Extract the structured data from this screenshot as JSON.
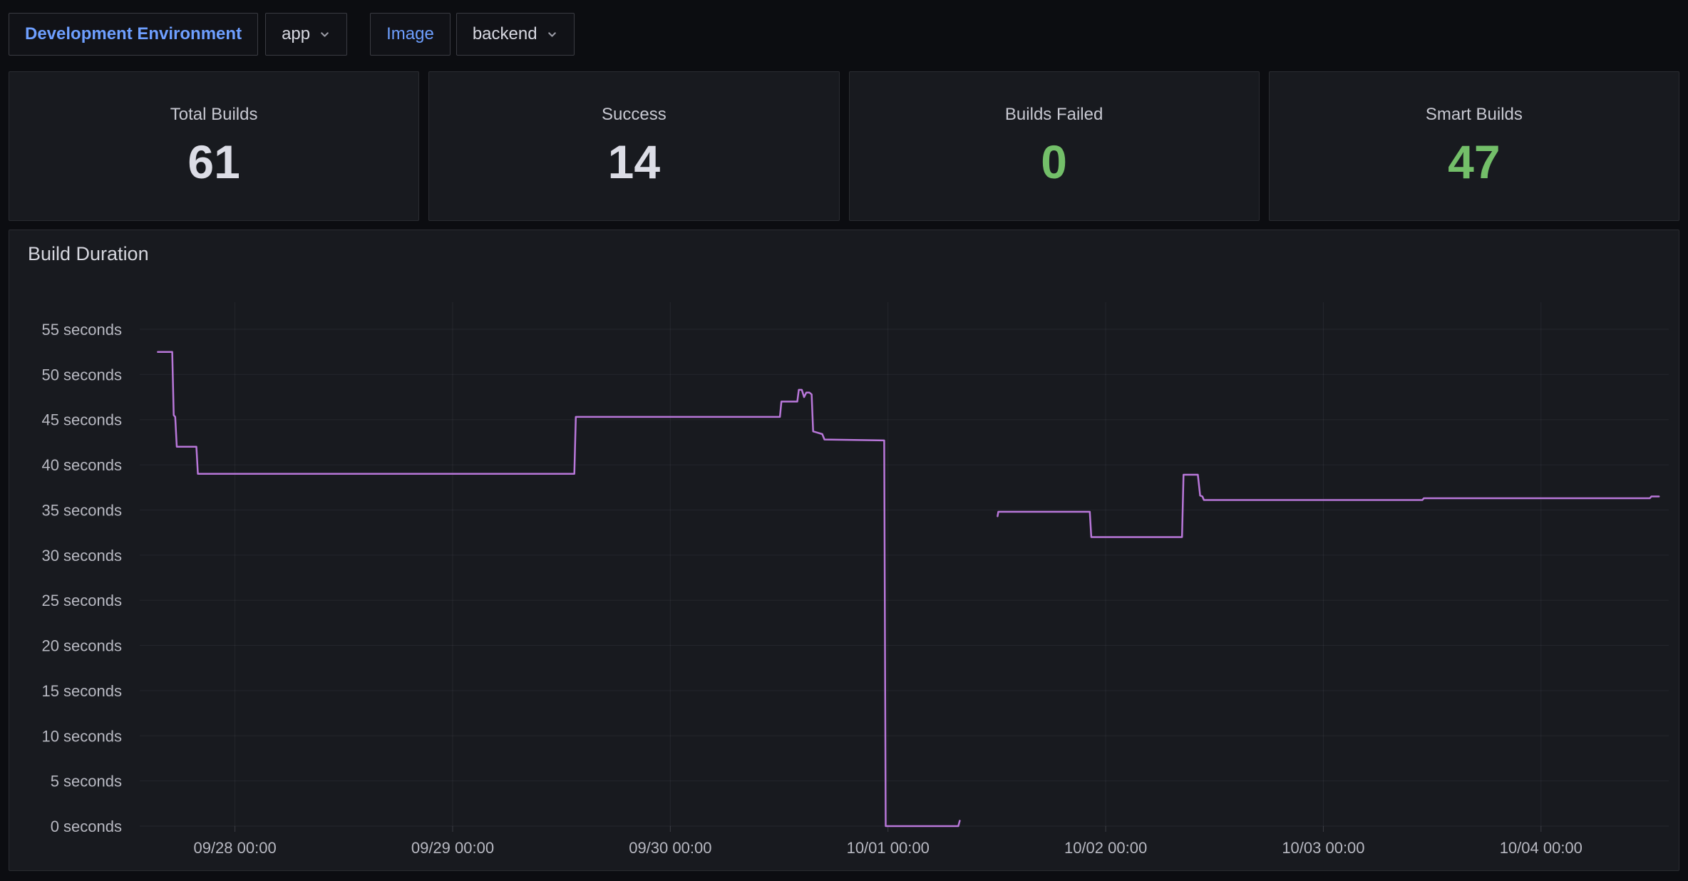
{
  "topbar": {
    "dev_env_label": "Development Environment",
    "app_value": "app",
    "image_label": "Image",
    "image_value": "backend"
  },
  "stats": [
    {
      "title": "Total Builds",
      "value": "61",
      "color": "#dcdde6"
    },
    {
      "title": "Success",
      "value": "14",
      "color": "#dcdde6"
    },
    {
      "title": "Builds Failed",
      "value": "0",
      "color": "#73bf69"
    },
    {
      "title": "Smart Builds",
      "value": "47",
      "color": "#73bf69"
    }
  ],
  "colors": {
    "page_bg": "#0c0d11",
    "panel_bg": "#181a1f",
    "panel_border": "#2a2c31",
    "accent_blue": "#6e9fff",
    "status_green": "#73bf69",
    "series_purple": "#b877d9",
    "grid": "rgba(204,204,220,0.07)",
    "axis_text": "#b8b9c2"
  },
  "chart_data": {
    "type": "line",
    "title": "Build Duration",
    "unit": "seconds",
    "legend": "none",
    "grid": true,
    "line_color": "#b877d9",
    "line_width": 2.5,
    "ylim": [
      0,
      58
    ],
    "y_ticks": [
      55,
      50,
      45,
      40,
      35,
      30,
      25,
      20,
      15,
      10,
      5,
      0
    ],
    "y_tick_suffix": " seconds",
    "x_domain": [
      "09/27 13:30",
      "10/04 14:05"
    ],
    "x_tick_labels": [
      "09/28 00:00",
      "09/29 00:00",
      "09/30 00:00",
      "10/01 00:00",
      "10/02 00:00",
      "10/03 00:00",
      "10/04 00:00"
    ],
    "series": [
      {
        "name": "Build Duration",
        "segments": [
          [
            [
              "09/27 15:30",
              52.5
            ],
            [
              "09/27 17:05",
              52.5
            ],
            [
              "09/27 17:15",
              45.5
            ],
            [
              "09/27 17:25",
              45.3
            ],
            [
              "09/27 17:35",
              42
            ],
            [
              "09/27 19:45",
              42
            ],
            [
              "09/27 19:55",
              39
            ],
            [
              "09/29 13:25",
              39
            ],
            [
              "09/29 13:35",
              45.3
            ],
            [
              "09/30 12:05",
              45.3
            ],
            [
              "09/30 12:15",
              47
            ],
            [
              "09/30 14:00",
              47
            ],
            [
              "09/30 14:10",
              48.3
            ],
            [
              "09/30 14:30",
              48.3
            ],
            [
              "09/30 14:45",
              47.5
            ],
            [
              "09/30 15:00",
              48
            ],
            [
              "09/30 15:20",
              48
            ],
            [
              "09/30 15:35",
              47.8
            ],
            [
              "09/30 15:45",
              43.7
            ],
            [
              "09/30 16:45",
              43.4
            ],
            [
              "09/30 17:00",
              42.8
            ],
            [
              "09/30 23:35",
              42.7
            ],
            [
              "09/30 23:45",
              0
            ],
            [
              "10/01 07:45",
              0
            ],
            [
              "10/01 07:55",
              0.6
            ]
          ],
          [
            [
              "10/01 12:05",
              34.3
            ],
            [
              "10/01 12:10",
              34.8
            ],
            [
              "10/01 22:15",
              34.8
            ],
            [
              "10/01 22:25",
              32
            ],
            [
              "10/02 08:25",
              32
            ],
            [
              "10/02 08:35",
              38.9
            ],
            [
              "10/02 10:10",
              38.9
            ],
            [
              "10/02 10:25",
              36.6
            ],
            [
              "10/02 10:40",
              36.5
            ],
            [
              "10/02 10:50",
              36.1
            ],
            [
              "10/03 10:55",
              36.1
            ],
            [
              "10/03 11:05",
              36.3
            ],
            [
              "10/04 12:00",
              36.3
            ],
            [
              "10/04 12:10",
              36.5
            ],
            [
              "10/04 13:00",
              36.5
            ]
          ]
        ]
      }
    ]
  }
}
